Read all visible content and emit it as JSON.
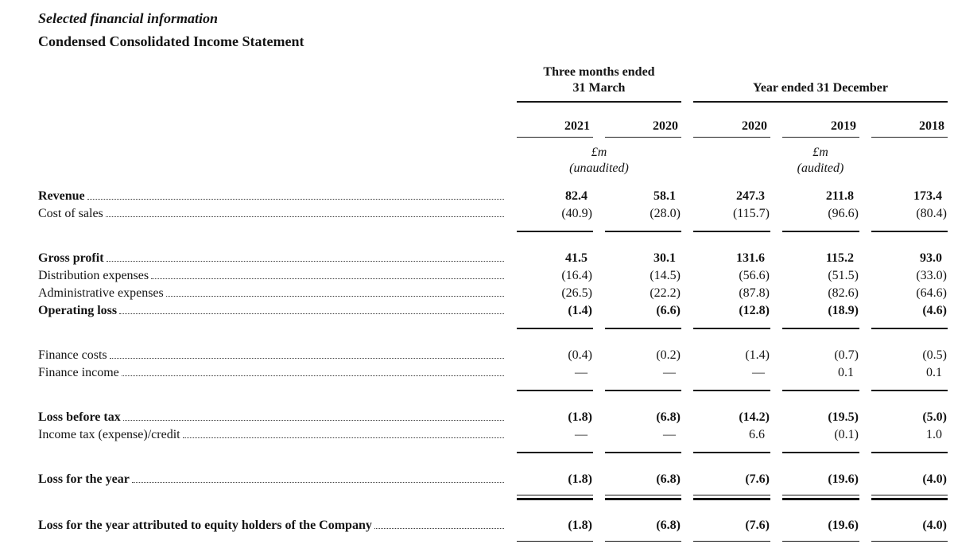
{
  "titles": {
    "section": "Selected financial information",
    "statement": "Condensed Consolidated Income Statement"
  },
  "table": {
    "groups": [
      {
        "label": "Three months ended\n31 March"
      },
      {
        "label": "Year ended 31 December"
      }
    ],
    "years": [
      "2021",
      "2020",
      "2020",
      "2019",
      "2018"
    ],
    "units": [
      {
        "currency": "£m",
        "audit": "(unaudited)"
      },
      {
        "currency": "£m",
        "audit": "(audited)"
      }
    ],
    "rows": [
      {
        "label": "Revenue",
        "bold": true,
        "values": [
          "82.4",
          "58.1",
          "247.3",
          "211.8",
          "173.4"
        ],
        "rule_below": null
      },
      {
        "label": "Cost of sales",
        "bold": false,
        "values": [
          "(40.9)",
          "(28.0)",
          "(115.7)",
          "(96.6)",
          "(80.4)"
        ],
        "rule_below": "single"
      },
      {
        "label": "Gross profit",
        "bold": true,
        "values": [
          "41.5",
          "30.1",
          "131.6",
          "115.2",
          "93.0"
        ],
        "rule_below": null
      },
      {
        "label": "Distribution expenses",
        "bold": false,
        "values": [
          "(16.4)",
          "(14.5)",
          "(56.6)",
          "(51.5)",
          "(33.0)"
        ],
        "rule_below": null
      },
      {
        "label": "Administrative expenses",
        "bold": false,
        "values": [
          "(26.5)",
          "(22.2)",
          "(87.8)",
          "(82.6)",
          "(64.6)"
        ],
        "rule_below": null
      },
      {
        "label": "Operating loss",
        "bold": true,
        "values": [
          "(1.4)",
          "(6.6)",
          "(12.8)",
          "(18.9)",
          "(4.6)"
        ],
        "rule_below": "single"
      },
      {
        "label": "Finance costs",
        "bold": false,
        "values": [
          "(0.4)",
          "(0.2)",
          "(1.4)",
          "(0.7)",
          "(0.5)"
        ],
        "rule_below": null
      },
      {
        "label": "Finance income",
        "bold": false,
        "values": [
          "—",
          "—",
          "—",
          "0.1",
          "0.1"
        ],
        "rule_below": "single"
      },
      {
        "label": "Loss before tax",
        "bold": true,
        "values": [
          "(1.8)",
          "(6.8)",
          "(14.2)",
          "(19.5)",
          "(5.0)"
        ],
        "rule_below": null
      },
      {
        "label": "Income tax (expense)/credit",
        "bold": false,
        "values": [
          "—",
          "—",
          "6.6",
          "(0.1)",
          "1.0"
        ],
        "rule_below": "single"
      },
      {
        "label": "Loss for the year",
        "bold": true,
        "values": [
          "(1.8)",
          "(6.8)",
          "(7.6)",
          "(19.6)",
          "(4.0)"
        ],
        "rule_below": "double"
      },
      {
        "label": "Loss for the year attributed to equity holders of the Company",
        "bold": true,
        "values": [
          "(1.8)",
          "(6.8)",
          "(7.6)",
          "(19.6)",
          "(4.0)"
        ],
        "rule_below": "double"
      }
    ]
  }
}
